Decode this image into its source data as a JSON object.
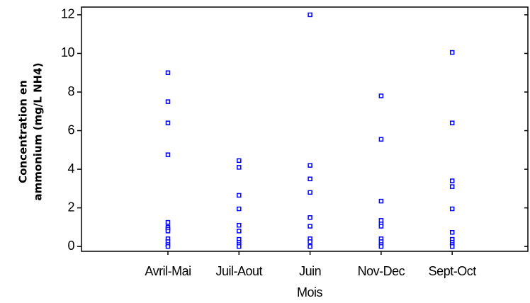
{
  "chart_data": {
    "type": "strip",
    "xlabel": "Mois",
    "ylabel": [
      "Concentration en",
      "ammonium  (mg/L NH4)"
    ],
    "categories": [
      "Avril-Mai",
      "Juil-Aout",
      "Juin",
      "Nov-Dec",
      "Sept-Oct"
    ],
    "values": [
      [
        9.0,
        7.5,
        6.4,
        4.75,
        1.25,
        1.0,
        0.9,
        0.8,
        0.4,
        0.25,
        0.1,
        0
      ],
      [
        4.45,
        4.1,
        2.65,
        1.95,
        1.1,
        0.8,
        0.37,
        0.22,
        0.1,
        0
      ],
      [
        12,
        4.2,
        3.5,
        2.8,
        1.5,
        1.05,
        0.4,
        0.25,
        0
      ],
      [
        7.8,
        5.55,
        2.35,
        1.35,
        1.17,
        1.05,
        0.4,
        0.25,
        0.1,
        0
      ],
      [
        10.05,
        6.4,
        3.4,
        3.1,
        1.95,
        0.73,
        0.37,
        0.22,
        0.1,
        0
      ]
    ],
    "color": "#0000ff",
    "ylim": [
      -0.25,
      12.4
    ],
    "yticks": [
      0,
      2,
      4,
      6,
      8,
      10,
      12
    ]
  }
}
